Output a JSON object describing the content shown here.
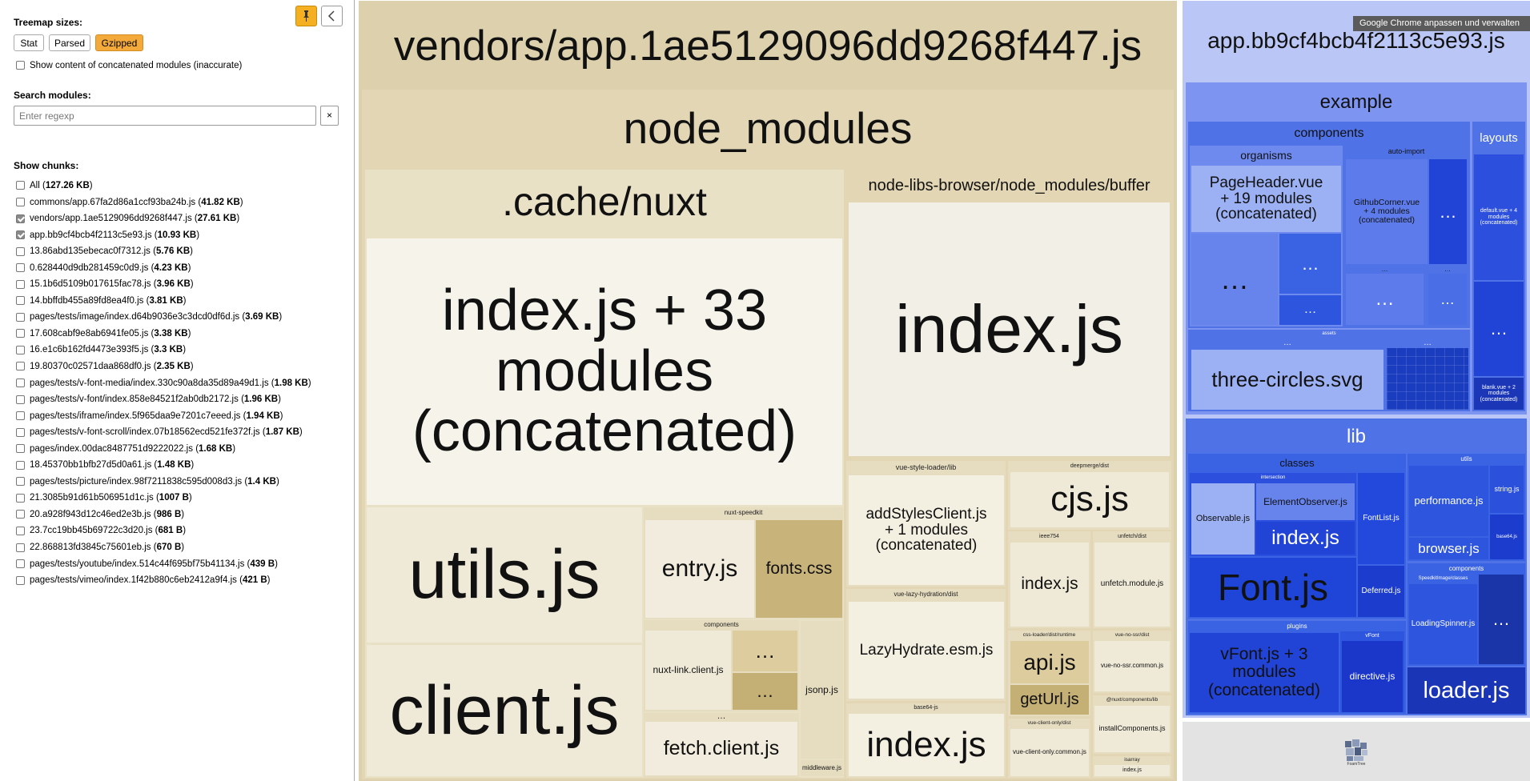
{
  "sidebar": {
    "treemap_sizes_label": "Treemap sizes:",
    "sizes": [
      "Stat",
      "Parsed",
      "Gzipped"
    ],
    "active_size": "Gzipped",
    "concat_label": "Show content of concatenated modules (inaccurate)",
    "search_label": "Search modules:",
    "search_placeholder": "Enter regexp",
    "clear_label": "×",
    "show_chunks_label": "Show chunks:",
    "chunks": [
      {
        "name": "All",
        "size": "127.26 KB",
        "checked": false
      },
      {
        "name": "commons/app.67fa2d86a1ccf93ba24b.js",
        "size": "41.82 KB",
        "checked": false
      },
      {
        "name": "vendors/app.1ae5129096dd9268f447.js",
        "size": "27.61 KB",
        "checked": true
      },
      {
        "name": "app.bb9cf4bcb4f2113c5e93.js",
        "size": "10.93 KB",
        "checked": true
      },
      {
        "name": "13.86abd135ebecac0f7312.js",
        "size": "5.76 KB",
        "checked": false
      },
      {
        "name": "0.628440d9db281459c0d9.js",
        "size": "4.23 KB",
        "checked": false
      },
      {
        "name": "15.1b6d5109b017615fac78.js",
        "size": "3.96 KB",
        "checked": false
      },
      {
        "name": "14.bbffdb455a89fd8ea4f0.js",
        "size": "3.81 KB",
        "checked": false
      },
      {
        "name": "pages/tests/image/index.d64b9036e3c3dcd0df6d.js",
        "size": "3.69 KB",
        "checked": false
      },
      {
        "name": "17.608cabf9e8ab6941fe05.js",
        "size": "3.38 KB",
        "checked": false
      },
      {
        "name": "16.e1c6b162fd4473e393f5.js",
        "size": "3.3 KB",
        "checked": false
      },
      {
        "name": "19.80370c02571daa868df0.js",
        "size": "2.35 KB",
        "checked": false
      },
      {
        "name": "pages/tests/v-font-media/index.330c90a8da35d89a49d1.js",
        "size": "1.98 KB",
        "checked": false
      },
      {
        "name": "pages/tests/v-font/index.858e84521f2ab0db2172.js",
        "size": "1.96 KB",
        "checked": false
      },
      {
        "name": "pages/tests/iframe/index.5f965daa9e7201c7eeed.js",
        "size": "1.94 KB",
        "checked": false
      },
      {
        "name": "pages/tests/v-font-scroll/index.07b18562ecd521fe372f.js",
        "size": "1.87 KB",
        "checked": false
      },
      {
        "name": "pages/index.00dac8487751d9222022.js",
        "size": "1.68 KB",
        "checked": false
      },
      {
        "name": "18.45370bb1bfb27d5d0a61.js",
        "size": "1.48 KB",
        "checked": false
      },
      {
        "name": "pages/tests/picture/index.98f7211838c595d008d3.js",
        "size": "1.4 KB",
        "checked": false
      },
      {
        "name": "21.3085b91d61b506951d1c.js",
        "size": "1007 B",
        "checked": false
      },
      {
        "name": "20.a928f943d12c46ed2e3b.js",
        "size": "986 B",
        "checked": false
      },
      {
        "name": "23.7cc19bb45b69722c3d20.js",
        "size": "681 B",
        "checked": false
      },
      {
        "name": "22.868813fd3845c75601eb.js",
        "size": "670 B",
        "checked": false
      },
      {
        "name": "pages/tests/youtube/index.514c44f695bf75b41134.js",
        "size": "439 B",
        "checked": false
      },
      {
        "name": "pages/tests/vimeo/index.1f42b880c6eb2412a9f4.js",
        "size": "421 B",
        "checked": false
      }
    ]
  },
  "tooltip": "Google Chrome anpassen und verwalten",
  "colors": {
    "vendor_bg": "#e0d5b2",
    "app_bg": "#bac6f6",
    "lib_blue": "#1f45d8"
  },
  "vendors": {
    "title": "vendors/app.1ae5129096dd9268f447.js",
    "node_modules": "node_modules",
    "cache_nuxt": ".cache/nuxt",
    "concat_index": "index.js + 33\nmodules\n(concatenated)",
    "utils": "utils.js",
    "client": "client.js",
    "nuxt_speedkit": "nuxt-speedkit",
    "entry": "entry.js",
    "fonts_css": "fonts.css",
    "components": "components",
    "nuxt_link": "nuxt-link.client.js",
    "dots": "…",
    "jsonp": "jsonp.js",
    "fetch_client": "fetch.client.js",
    "middleware": "middleware.js",
    "buffer_label": "node-libs-browser/node_modules/buffer",
    "buffer_index": "index.js",
    "vsl_label": "vue-style-loader/lib",
    "add_styles": "addStylesClient.js\n+ 1 modules\n(concatenated)",
    "deepmerge_label": "deepmerge/dist",
    "cjs": "cjs.js",
    "ieee_label": "ieee754",
    "ieee_index": "index.js",
    "unfetch_label": "unfetch/dist",
    "unfetch": "unfetch.module.js",
    "vlh_label": "vue-lazy-hydration/dist",
    "lazy_hydrate": "LazyHydrate.esm.js",
    "css_loader_label": "css-loader/dist/runtime",
    "api": "api.js",
    "get_url": "getUrl.js",
    "vue_no_ssr_label": "vue-no-ssr/dist",
    "vue_no_ssr": "vue-no-ssr.common.js",
    "base64_label": "base64-js",
    "base64_index": "index.js",
    "vco_label": "vue-client-only/dist",
    "vco": "vue-client-only.common.js",
    "nuxt_comp_label": "@nuxt/components/lib",
    "install_comp": "installComponents.js",
    "isarray_label": "isarray",
    "isarray_index": "index.js"
  },
  "app": {
    "title": "app.bb9cf4bcb4f2113c5e93.js",
    "example": "example",
    "components": "components",
    "organisms": "organisms",
    "page_header": "PageHeader.vue\n+ 19 modules\n(concatenated)",
    "auto_import": "auto-import",
    "github_corner": "GithubCorner.vue\n+ 4 modules\n(concatenated)",
    "layouts": "layouts",
    "default_vue": "default.vue + 4\nmodules\n(concatenated)",
    "blank_vue": "blank.vue + 2\nmodules\n(concatenated)",
    "assets": "assets",
    "three_circles": "three-circles.svg",
    "dots": "…",
    "lib": "lib",
    "classes": "classes",
    "intersection": "intersection",
    "observable": "Observable.js",
    "element_observer": "ElementObserver.js",
    "lib_index": "index.js",
    "font_list": "FontList.js",
    "font": "Font.js",
    "deferred": "Deferred.js",
    "utils": "utils",
    "performance": "performance.js",
    "string": "string.js",
    "browser": "browser.js",
    "base64": "base64.js",
    "comp": "components",
    "speedkit_image": "SpeedkitImage/classes",
    "loading_spinner": "LoadingSpinner.js",
    "plugins": "plugins",
    "vfont_concat": "vFont.js + 3\nmodules\n(concatenated)",
    "vfont": "vFont",
    "directive": "directive.js",
    "loader": "loader.js",
    "foamtree": "FoamTree"
  }
}
